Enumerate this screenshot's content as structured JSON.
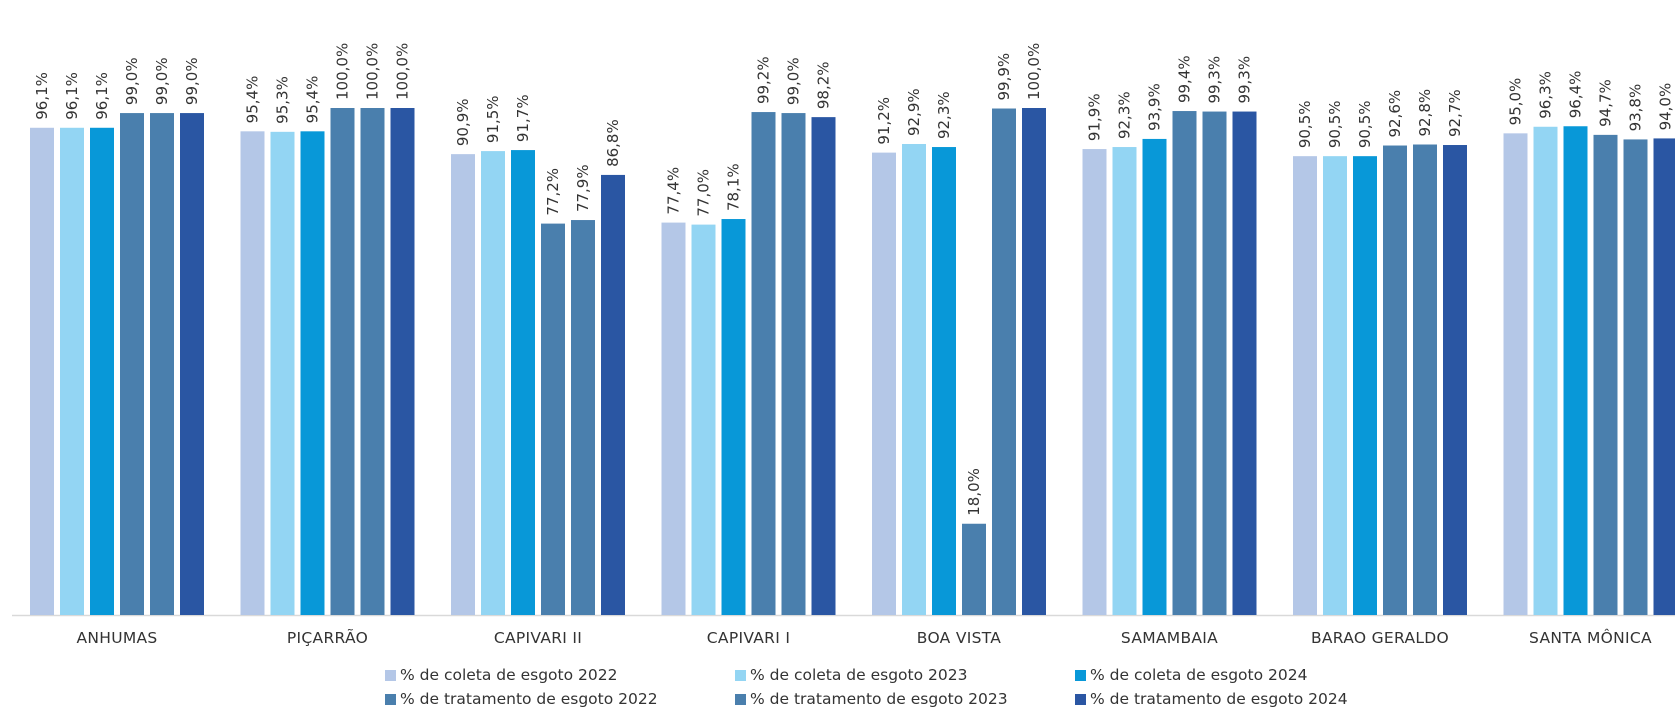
{
  "chart_data": {
    "type": "bar",
    "title": "",
    "xlabel": "",
    "ylabel": "",
    "ylim": [
      0,
      100
    ],
    "grid": false,
    "legend_position": "bottom",
    "categories": [
      "ANHUMAS",
      "PIÇARRÃO",
      "CAPIVARI II",
      "CAPIVARI I",
      "BOA VISTA",
      "SAMAMBAIA",
      "BARAO GERALDO",
      "SANTA MÔNICA"
    ],
    "series": [
      {
        "name": "% de coleta de esgoto 2022",
        "color": "#b4c7e7",
        "values": [
          96.1,
          95.4,
          90.9,
          77.4,
          91.2,
          91.9,
          90.5,
          95.0
        ],
        "labels": [
          "96,1%",
          "95,4%",
          "90,9%",
          "77,4%",
          "91,2%",
          "91,9%",
          "90,5%",
          "95,0%"
        ]
      },
      {
        "name": "% de coleta de esgoto 2023",
        "color": "#93d5f3",
        "values": [
          96.1,
          95.3,
          91.5,
          77.0,
          92.9,
          92.3,
          90.5,
          96.3
        ],
        "labels": [
          "96,1%",
          "95,3%",
          "91,5%",
          "77,0%",
          "92,9%",
          "92,3%",
          "90,5%",
          "96,3%"
        ]
      },
      {
        "name": "% de coleta de esgoto 2024",
        "color": "#0898d8",
        "values": [
          96.1,
          95.4,
          91.7,
          78.1,
          92.3,
          93.9,
          90.5,
          96.4
        ],
        "labels": [
          "96,1%",
          "95,4%",
          "91,7%",
          "78,1%",
          "92,3%",
          "93,9%",
          "90,5%",
          "96,4%"
        ]
      },
      {
        "name": "% de tratamento de esgoto 2022",
        "color": "#4a7fad",
        "values": [
          99.0,
          100.0,
          77.2,
          99.2,
          18.0,
          99.4,
          92.6,
          94.7
        ],
        "labels": [
          "99,0%",
          "100,0%",
          "77,2%",
          "99,2%",
          "18,0%",
          "99,4%",
          "92,6%",
          "94,7%"
        ]
      },
      {
        "name": "% de tratamento de esgoto 2023",
        "color": "#4a7fad",
        "values": [
          99.0,
          100.0,
          77.9,
          99.0,
          99.9,
          99.3,
          92.8,
          93.8
        ],
        "labels": [
          "99,0%",
          "100,0%",
          "77,9%",
          "99,0%",
          "99,9%",
          "99,3%",
          "92,8%",
          "93,8%"
        ]
      },
      {
        "name": "% de tratamento de esgoto 2024",
        "color": "#2a56a3",
        "values": [
          99.0,
          100.0,
          86.8,
          98.2,
          100.0,
          99.3,
          92.7,
          94.0
        ],
        "labels": [
          "99,0%",
          "100,0%",
          "86,8%",
          "98,2%",
          "100,0%",
          "99,3%",
          "92,7%",
          "94,0%"
        ]
      }
    ]
  },
  "legend": {
    "items": [
      {
        "label": "% de coleta de esgoto 2022",
        "color": "#b4c7e7"
      },
      {
        "label": "% de coleta de esgoto 2023",
        "color": "#93d5f3"
      },
      {
        "label": "% de coleta de esgoto 2024",
        "color": "#0898d8"
      },
      {
        "label": "% de tratamento de esgoto 2022",
        "color": "#4a7fad"
      },
      {
        "label": "% de tratamento de esgoto 2023",
        "color": "#4a7fad"
      },
      {
        "label": "% de tratamento de esgoto 2024",
        "color": "#2a56a3"
      }
    ]
  }
}
